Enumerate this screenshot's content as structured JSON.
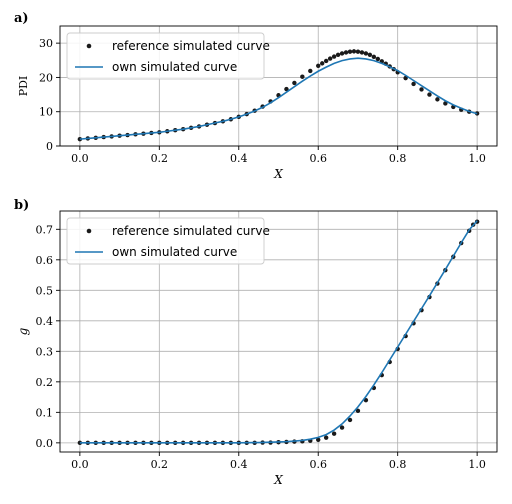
{
  "chart_data": [
    {
      "panel_label": "a)",
      "type": "line",
      "xlabel": "X",
      "ylabel": "PDI",
      "xlim": [
        -0.05,
        1.05
      ],
      "ylim": [
        0,
        35
      ],
      "x_ticks": [
        0.0,
        0.2,
        0.4,
        0.6,
        0.8,
        1.0
      ],
      "x_tick_labels": [
        "0.0",
        "0.2",
        "0.4",
        "0.6",
        "0.8",
        "1.0"
      ],
      "y_ticks": [
        0,
        10,
        20,
        30
      ],
      "y_tick_labels": [
        "0",
        "10",
        "20",
        "30"
      ],
      "grid": true,
      "legend_position": "top-left",
      "legend": [
        "reference simulated curve",
        "own simulated curve"
      ],
      "series": [
        {
          "name": "reference simulated curve",
          "style": "points",
          "color": "#1a1a1a",
          "x": [
            0.0,
            0.02,
            0.04,
            0.06,
            0.08,
            0.1,
            0.12,
            0.14,
            0.16,
            0.18,
            0.2,
            0.22,
            0.24,
            0.26,
            0.28,
            0.3,
            0.32,
            0.34,
            0.36,
            0.38,
            0.4,
            0.42,
            0.44,
            0.46,
            0.48,
            0.5,
            0.52,
            0.54,
            0.56,
            0.58,
            0.6,
            0.61,
            0.62,
            0.63,
            0.64,
            0.65,
            0.66,
            0.67,
            0.68,
            0.69,
            0.7,
            0.71,
            0.72,
            0.73,
            0.74,
            0.75,
            0.76,
            0.77,
            0.78,
            0.79,
            0.8,
            0.82,
            0.84,
            0.86,
            0.88,
            0.9,
            0.92,
            0.94,
            0.96,
            0.98,
            1.0
          ],
          "y": [
            2.0,
            2.2,
            2.4,
            2.6,
            2.8,
            3.0,
            3.2,
            3.4,
            3.6,
            3.8,
            4.0,
            4.3,
            4.6,
            4.9,
            5.3,
            5.7,
            6.2,
            6.7,
            7.2,
            7.8,
            8.5,
            9.3,
            10.3,
            11.5,
            13.0,
            14.8,
            16.6,
            18.4,
            20.2,
            21.9,
            23.4,
            24.1,
            24.8,
            25.5,
            26.1,
            26.6,
            27.0,
            27.3,
            27.5,
            27.6,
            27.5,
            27.3,
            27.0,
            26.6,
            26.0,
            25.4,
            24.7,
            24.0,
            23.2,
            22.4,
            21.5,
            19.8,
            18.1,
            16.5,
            15.0,
            13.6,
            12.4,
            11.4,
            10.6,
            10.0,
            9.5
          ]
        },
        {
          "name": "own simulated curve",
          "style": "line",
          "color": "#1f77b4",
          "x": [
            0.0,
            0.02,
            0.04,
            0.06,
            0.08,
            0.1,
            0.12,
            0.14,
            0.16,
            0.18,
            0.2,
            0.22,
            0.24,
            0.26,
            0.28,
            0.3,
            0.32,
            0.34,
            0.36,
            0.38,
            0.4,
            0.42,
            0.44,
            0.46,
            0.48,
            0.5,
            0.52,
            0.54,
            0.56,
            0.58,
            0.6,
            0.62,
            0.64,
            0.66,
            0.68,
            0.7,
            0.72,
            0.74,
            0.76,
            0.78,
            0.8,
            0.82,
            0.84,
            0.86,
            0.88,
            0.9,
            0.92,
            0.94,
            0.96,
            0.98,
            1.0
          ],
          "y": [
            2.0,
            2.2,
            2.4,
            2.6,
            2.8,
            3.0,
            3.2,
            3.4,
            3.6,
            3.8,
            4.0,
            4.3,
            4.6,
            4.9,
            5.3,
            5.7,
            6.2,
            6.7,
            7.2,
            7.8,
            8.5,
            9.3,
            10.2,
            11.3,
            12.6,
            14.1,
            15.7,
            17.3,
            18.9,
            20.4,
            21.8,
            23.0,
            24.1,
            24.9,
            25.4,
            25.6,
            25.4,
            24.9,
            24.1,
            23.1,
            22.0,
            20.6,
            19.1,
            17.6,
            16.1,
            14.6,
            13.2,
            12.0,
            11.0,
            10.1,
            9.4
          ]
        }
      ]
    },
    {
      "panel_label": "b)",
      "type": "line",
      "xlabel": "X",
      "ylabel": "g",
      "xlim": [
        -0.05,
        1.05
      ],
      "ylim": [
        -0.03,
        0.76
      ],
      "x_ticks": [
        0.0,
        0.2,
        0.4,
        0.6,
        0.8,
        1.0
      ],
      "x_tick_labels": [
        "0.0",
        "0.2",
        "0.4",
        "0.6",
        "0.8",
        "1.0"
      ],
      "y_ticks": [
        0.0,
        0.1,
        0.2,
        0.3,
        0.4,
        0.5,
        0.6,
        0.7
      ],
      "y_tick_labels": [
        "0.0",
        "0.1",
        "0.2",
        "0.3",
        "0.4",
        "0.5",
        "0.6",
        "0.7"
      ],
      "grid": true,
      "legend_position": "top-left",
      "legend": [
        "reference simulated curve",
        "own simulated curve"
      ],
      "series": [
        {
          "name": "reference simulated curve",
          "style": "points",
          "color": "#1a1a1a",
          "x": [
            0.0,
            0.02,
            0.04,
            0.06,
            0.08,
            0.1,
            0.12,
            0.14,
            0.16,
            0.18,
            0.2,
            0.22,
            0.24,
            0.26,
            0.28,
            0.3,
            0.32,
            0.34,
            0.36,
            0.38,
            0.4,
            0.42,
            0.44,
            0.46,
            0.48,
            0.5,
            0.52,
            0.54,
            0.56,
            0.58,
            0.6,
            0.62,
            0.64,
            0.66,
            0.68,
            0.7,
            0.72,
            0.74,
            0.76,
            0.78,
            0.8,
            0.82,
            0.84,
            0.86,
            0.88,
            0.9,
            0.92,
            0.94,
            0.96,
            0.98,
            0.99,
            1.0
          ],
          "y": [
            0.0,
            0.0,
            0.0,
            0.0,
            0.0,
            0.0,
            0.0,
            0.0,
            0.0,
            0.0,
            0.0,
            0.0,
            0.0,
            0.0,
            0.0,
            0.0,
            0.0,
            0.0,
            0.0,
            0.0,
            0.0,
            0.0,
            0.0,
            0.001,
            0.001,
            0.002,
            0.003,
            0.004,
            0.005,
            0.007,
            0.01,
            0.017,
            0.03,
            0.05,
            0.075,
            0.105,
            0.14,
            0.18,
            0.222,
            0.265,
            0.308,
            0.35,
            0.392,
            0.435,
            0.478,
            0.522,
            0.566,
            0.61,
            0.655,
            0.695,
            0.715,
            0.725
          ]
        },
        {
          "name": "own simulated curve",
          "style": "line",
          "color": "#1f77b4",
          "x": [
            0.0,
            0.05,
            0.1,
            0.15,
            0.2,
            0.25,
            0.3,
            0.35,
            0.4,
            0.45,
            0.5,
            0.52,
            0.54,
            0.56,
            0.58,
            0.6,
            0.62,
            0.64,
            0.66,
            0.68,
            0.7,
            0.72,
            0.74,
            0.76,
            0.78,
            0.8,
            0.82,
            0.84,
            0.86,
            0.88,
            0.9,
            0.92,
            0.94,
            0.96,
            0.98,
            1.0
          ],
          "y": [
            0.0,
            0.0,
            0.0,
            0.0,
            0.0,
            0.0,
            0.0,
            0.0,
            0.0,
            0.001,
            0.003,
            0.004,
            0.006,
            0.008,
            0.012,
            0.018,
            0.027,
            0.042,
            0.062,
            0.088,
            0.118,
            0.152,
            0.19,
            0.23,
            0.272,
            0.314,
            0.356,
            0.398,
            0.44,
            0.482,
            0.525,
            0.568,
            0.612,
            0.656,
            0.698,
            0.728
          ]
        }
      ]
    }
  ]
}
